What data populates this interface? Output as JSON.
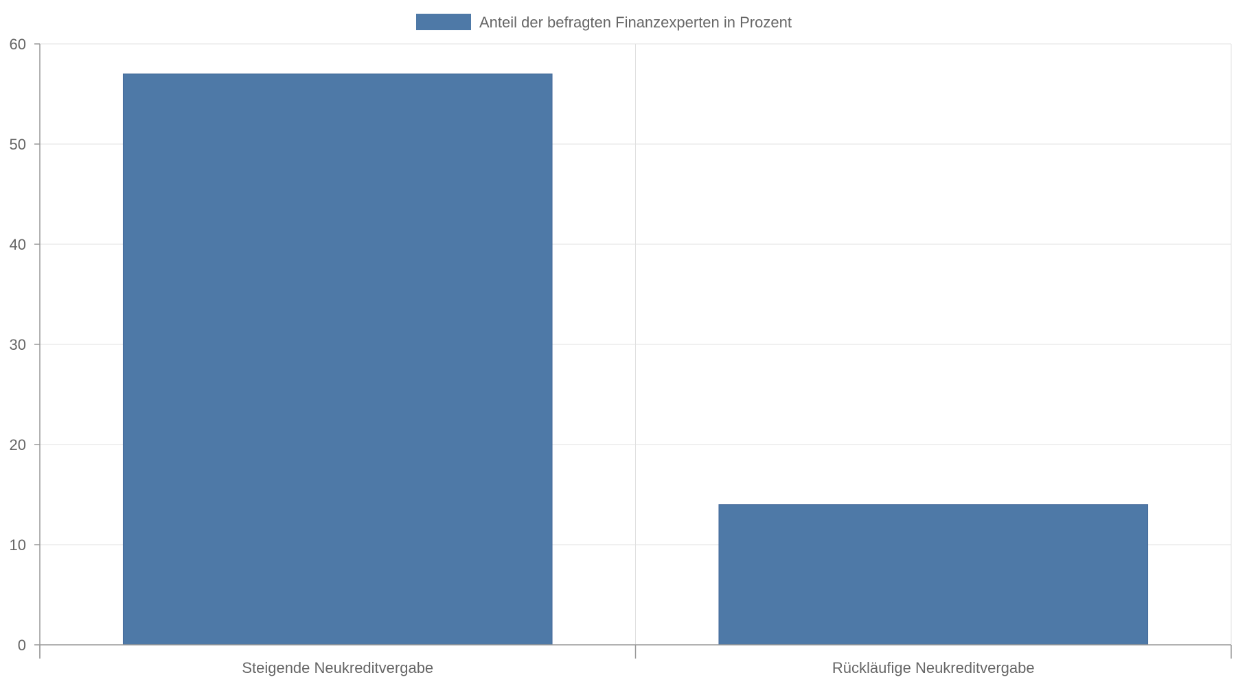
{
  "chart_data": {
    "type": "bar",
    "categories": [
      "Steigende Neukreditvergabe",
      "Rückläufige Neukreditvergabe"
    ],
    "series": [
      {
        "name": "Anteil der befragten Finanzexperten in Prozent",
        "values": [
          57,
          14
        ],
        "color": "#4e79a7"
      }
    ],
    "ylim": [
      0,
      60
    ],
    "yticks": [
      0,
      10,
      20,
      30,
      40,
      50,
      60
    ],
    "grid": true,
    "legend_position": "top-center"
  }
}
